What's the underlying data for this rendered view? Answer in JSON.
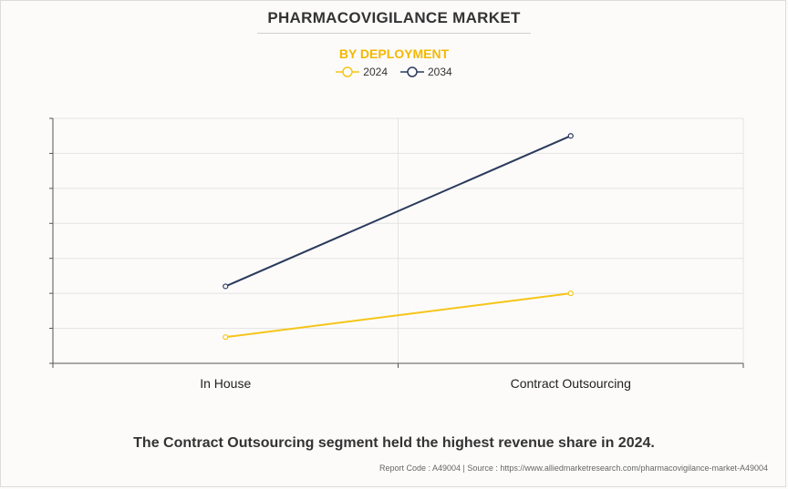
{
  "chart_data": {
    "type": "line",
    "title": "PHARMACOVIGILANCE MARKET",
    "subtitle": "BY DEPLOYMENT",
    "categories": [
      "In House",
      "Contract Outsourcing"
    ],
    "series": [
      {
        "name": "2024",
        "color": "#f5c518",
        "values": [
          0.75,
          2.0
        ]
      },
      {
        "name": "2034",
        "color": "#2b3a5c",
        "values": [
          2.2,
          6.5
        ]
      }
    ],
    "ylim": [
      0,
      7
    ],
    "ytick_count": 7,
    "xlabel": "",
    "ylabel": "",
    "grid": true,
    "legend_position": "top-center"
  },
  "colors": {
    "subtitle": "#f5b800",
    "grid": "#e3e3e3",
    "axis": "#555555"
  },
  "caption": "The Contract Outsourcing segment held the highest revenue share in 2024.",
  "footer": "Report Code : A49004  |  Source : https://www.alliedmarketresearch.com/pharmacovigilance-market-A49004"
}
